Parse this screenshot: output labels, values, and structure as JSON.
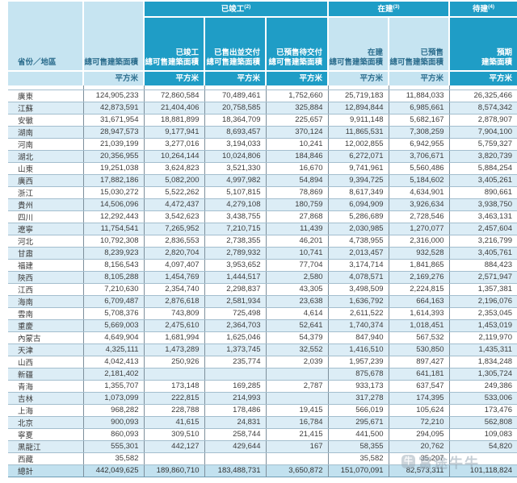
{
  "header": {
    "province_label": "省份／地區",
    "total_saleable_label": "總可售建築面積",
    "unit_label": "平方米",
    "groups": {
      "completed": {
        "label": "已竣工",
        "sup": "(2)"
      },
      "under_construction": {
        "label": "在建",
        "sup": "(3)"
      },
      "pending": {
        "label": "待建",
        "sup": "(4)"
      }
    },
    "subcols": {
      "completed_total": {
        "line1": "已竣工",
        "line2": "總可售建築面積"
      },
      "sold_delivered": {
        "line1": "已售出並交付",
        "line2": "總可售建築面積"
      },
      "presold_undelivered": {
        "line1": "已預售待交付",
        "line2": "總可售建築面積"
      },
      "under_construction_total": {
        "line1": "在建",
        "line2": "總可售建築面積"
      },
      "presold": {
        "line1": "已預售",
        "line2": "總可售建築面積"
      },
      "expected": {
        "line1": "預期",
        "line2": "建築面積"
      }
    }
  },
  "table": {
    "rows": [
      [
        "廣東",
        "124,905,233",
        "72,860,584",
        "70,489,461",
        "1,752,660",
        "25,719,183",
        "11,884,033",
        "26,325,466"
      ],
      [
        "江蘇",
        "42,873,591",
        "21,404,406",
        "20,758,585",
        "325,884",
        "12,894,844",
        "6,985,661",
        "8,574,342"
      ],
      [
        "安徽",
        "31,671,954",
        "18,881,899",
        "18,364,709",
        "225,657",
        "9,911,148",
        "5,682,167",
        "2,878,907"
      ],
      [
        "湖南",
        "28,947,573",
        "9,177,941",
        "8,693,457",
        "370,124",
        "11,865,531",
        "7,308,259",
        "7,904,100"
      ],
      [
        "河南",
        "21,039,199",
        "3,277,016",
        "3,194,033",
        "10,241",
        "12,002,855",
        "6,942,955",
        "5,759,327"
      ],
      [
        "湖北",
        "20,356,955",
        "10,264,144",
        "10,024,806",
        "184,846",
        "6,272,071",
        "3,706,671",
        "3,820,739"
      ],
      [
        "山東",
        "19,251,038",
        "3,624,823",
        "3,521,330",
        "16,670",
        "9,741,961",
        "5,560,486",
        "5,884,254"
      ],
      [
        "廣西",
        "17,882,186",
        "5,082,200",
        "4,997,982",
        "54,894",
        "9,394,725",
        "5,184,602",
        "3,405,261"
      ],
      [
        "浙江",
        "15,030,272",
        "5,522,262",
        "5,107,815",
        "78,869",
        "8,617,349",
        "4,634,901",
        "890,661"
      ],
      [
        "貴州",
        "14,506,096",
        "4,472,437",
        "4,279,108",
        "180,759",
        "6,094,909",
        "3,926,634",
        "3,938,750"
      ],
      [
        "四川",
        "12,292,443",
        "3,542,623",
        "3,438,755",
        "27,868",
        "5,286,689",
        "2,728,546",
        "3,463,131"
      ],
      [
        "遼寧",
        "11,754,541",
        "7,265,952",
        "7,210,715",
        "11,439",
        "2,030,985",
        "1,270,077",
        "2,457,604"
      ],
      [
        "河北",
        "10,792,308",
        "2,836,553",
        "2,738,355",
        "46,201",
        "4,738,955",
        "2,316,000",
        "3,216,799"
      ],
      [
        "甘肅",
        "8,239,923",
        "2,820,704",
        "2,789,932",
        "10,741",
        "2,013,457",
        "932,528",
        "3,405,761"
      ],
      [
        "福建",
        "8,156,543",
        "4,097,407",
        "3,953,652",
        "77,704",
        "3,174,714",
        "1,841,865",
        "884,423"
      ],
      [
        "陝西",
        "8,105,288",
        "1,454,769",
        "1,444,517",
        "2,580",
        "4,078,571",
        "2,169,276",
        "2,571,947"
      ],
      [
        "江西",
        "7,210,630",
        "2,354,740",
        "2,298,837",
        "43,305",
        "3,498,509",
        "2,224,815",
        "1,357,381"
      ],
      [
        "海南",
        "6,709,487",
        "2,876,618",
        "2,581,934",
        "23,638",
        "1,636,792",
        "664,163",
        "2,196,076"
      ],
      [
        "雲南",
        "5,708,376",
        "743,809",
        "725,498",
        "4,614",
        "2,611,522",
        "1,614,393",
        "2,353,045"
      ],
      [
        "重慶",
        "5,669,003",
        "2,475,610",
        "2,364,703",
        "52,641",
        "1,740,374",
        "1,018,451",
        "1,453,019"
      ],
      [
        "內蒙古",
        "4,649,904",
        "1,681,994",
        "1,625,046",
        "54,379",
        "847,940",
        "567,532",
        "2,119,970"
      ],
      [
        "天津",
        "4,325,111",
        "1,473,289",
        "1,373,745",
        "32,552",
        "1,416,510",
        "530,850",
        "1,435,311"
      ],
      [
        "山西",
        "4,042,413",
        "250,926",
        "235,774",
        "2,039",
        "1,957,239",
        "897,427",
        "1,834,248"
      ],
      [
        "新疆",
        "2,181,402",
        "",
        "",
        "",
        "875,678",
        "641,181",
        "1,305,724"
      ],
      [
        "青海",
        "1,355,707",
        "173,148",
        "169,285",
        "2,787",
        "933,173",
        "637,547",
        "249,386"
      ],
      [
        "吉林",
        "1,073,099",
        "222,815",
        "214,993",
        "",
        "317,278",
        "174,395",
        "533,006"
      ],
      [
        "上海",
        "968,282",
        "228,788",
        "178,486",
        "19,415",
        "566,019",
        "105,624",
        "173,476"
      ],
      [
        "北京",
        "900,093",
        "41,615",
        "24,831",
        "16,784",
        "295,671",
        "72,210",
        "562,808"
      ],
      [
        "寧夏",
        "860,093",
        "309,510",
        "258,744",
        "21,415",
        "441,500",
        "294,095",
        "109,083"
      ],
      [
        "黑龍江",
        "555,301",
        "442,127",
        "429,644",
        "167",
        "58,355",
        "20,762",
        "54,820"
      ],
      [
        "西藏",
        "35,582",
        "",
        "",
        "",
        "35,582",
        "35,207",
        ""
      ]
    ],
    "total_row": [
      "總計",
      "442,049,625",
      "189,860,710",
      "183,488,731",
      "3,650,872",
      "151,070,091",
      "82,573,311",
      "101,118,824"
    ]
  },
  "watermark": {
    "text": "富途牛牛",
    "logo_glyph": "牛"
  },
  "colors": {
    "header_dark": "#1f9dc6",
    "header_light": "#c6e4f1",
    "row_stripe": "#dcedf6",
    "total_row_bg": "#c2e1ef"
  }
}
